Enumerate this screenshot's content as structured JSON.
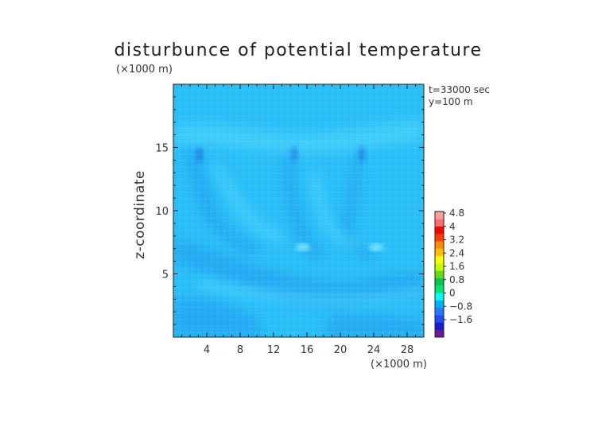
{
  "chart_data": {
    "type": "heatmap",
    "title": "disturbunce of potential temperature",
    "ylabel": "z-coordinate",
    "x_unit": "(×1000 m)",
    "y_unit": "(×1000 m)",
    "xlim": [
      0,
      30
    ],
    "ylim": [
      0,
      20
    ],
    "x_ticks": [
      "4",
      "8",
      "12",
      "16",
      "20",
      "24",
      "28"
    ],
    "y_ticks": [
      "5",
      "10",
      "15"
    ],
    "time_label": "t=33000 sec",
    "y_slice_label": "y=100 m",
    "grid": true,
    "colorbar": {
      "placement": "right",
      "levels": [
        "4.8",
        "4",
        "3.2",
        "2.4",
        "1.6",
        "0.8",
        "0",
        "−0.8",
        "−1.6"
      ],
      "colors": [
        "#6a1b9a",
        "#1a1ad0",
        "#1f4ff0",
        "#2a78ff",
        "#00b0ff",
        "#00ffff",
        "#00e676",
        "#00c853",
        "#64dd17",
        "#c6ff00",
        "#ffff00",
        "#ffc107",
        "#ff8c00",
        "#ff3d00",
        "#ff0000",
        "#ff6f6f",
        "#ff9e9e"
      ]
    },
    "colors": {
      "background_field": "#27bdf7",
      "negative_anomaly": "#1f8ef0",
      "positive_anomaly": "#49d2fb",
      "grid": "#ffffff"
    }
  }
}
